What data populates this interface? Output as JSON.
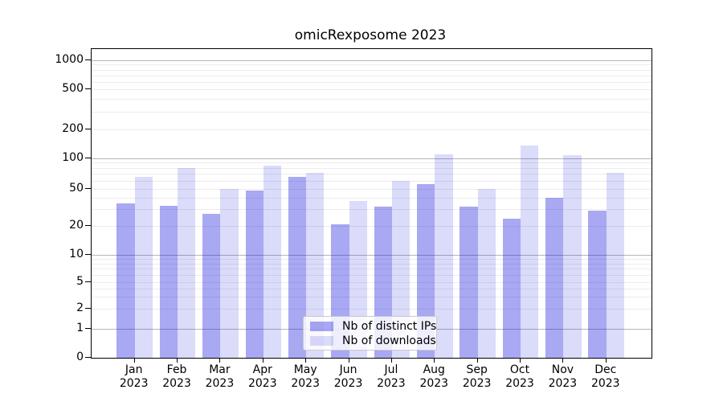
{
  "title": "omicRexposome 2023",
  "y_axis": {
    "tick_labels": [
      "1000",
      "500",
      "200",
      "100",
      "50",
      "20",
      "10",
      "5",
      "2",
      "1",
      "0"
    ],
    "tick_values": [
      1000,
      500,
      200,
      100,
      50,
      20,
      10,
      5,
      2,
      1,
      0
    ]
  },
  "x_axis": {
    "months": [
      "Jan",
      "Feb",
      "Mar",
      "Apr",
      "May",
      "Jun",
      "Jul",
      "Aug",
      "Sep",
      "Oct",
      "Nov",
      "Dec"
    ],
    "year": "2023"
  },
  "legend": {
    "items": [
      {
        "label": "Nb of distinct IPs",
        "color": "rgba(0,0,220,0.34)"
      },
      {
        "label": "Nb of downloads",
        "color": "rgba(0,0,220,0.14)"
      }
    ]
  },
  "colors": {
    "bar_dark": "rgba(0,0,220,0.34)",
    "bar_light": "rgba(0,0,220,0.14)",
    "grid_major": "#b6b6b6",
    "grid_minor": "#ececec"
  },
  "chart_data": {
    "type": "bar",
    "title": "omicRexposome 2023",
    "categories": [
      "Jan 2023",
      "Feb 2023",
      "Mar 2023",
      "Apr 2023",
      "May 2023",
      "Jun 2023",
      "Jul 2023",
      "Aug 2023",
      "Sep 2023",
      "Oct 2023",
      "Nov 2023",
      "Dec 2023"
    ],
    "series": [
      {
        "name": "Nb of distinct IPs",
        "color": "rgba(0,0,220,0.34)",
        "values": [
          35,
          33,
          27,
          48,
          65,
          21,
          32,
          55,
          32,
          24,
          40,
          29
        ]
      },
      {
        "name": "Nb of downloads",
        "color": "rgba(0,0,220,0.14)",
        "values": [
          65,
          79,
          50,
          84,
          71,
          37,
          60,
          109,
          50,
          135,
          108,
          72
        ]
      }
    ],
    "xlabel": "",
    "ylabel": "",
    "yscale": "log-like (linear below 1)",
    "yticks": [
      0,
      1,
      2,
      5,
      10,
      20,
      50,
      100,
      200,
      500,
      1000
    ],
    "ylim": [
      0,
      1000
    ],
    "grid": true,
    "legend_position": "lower center"
  }
}
